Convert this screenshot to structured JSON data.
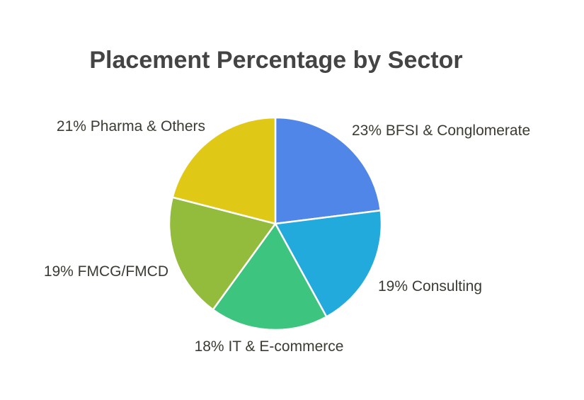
{
  "chart_data": {
    "type": "pie",
    "title": "Placement Percentage by Sector",
    "start_angle": "12 o'clock, clockwise",
    "slices": [
      {
        "label": "23% BFSI & Conglomerate",
        "category": "BFSI & Conglomerate",
        "value": 23,
        "color": "#4f86e8"
      },
      {
        "label": "19% Consulting",
        "category": "Consulting",
        "value": 19,
        "color": "#22aadd"
      },
      {
        "label": "18% IT & E-commerce",
        "category": "IT & E-commerce",
        "value": 18,
        "color": "#3dc47e"
      },
      {
        "label": "19% FMCG/FMCD",
        "category": "FMCG/FMCD",
        "value": 19,
        "color": "#93bb3c"
      },
      {
        "label": "21% Pharma & Others",
        "category": "Pharma & Others",
        "value": 21,
        "color": "#e0c916"
      }
    ]
  }
}
